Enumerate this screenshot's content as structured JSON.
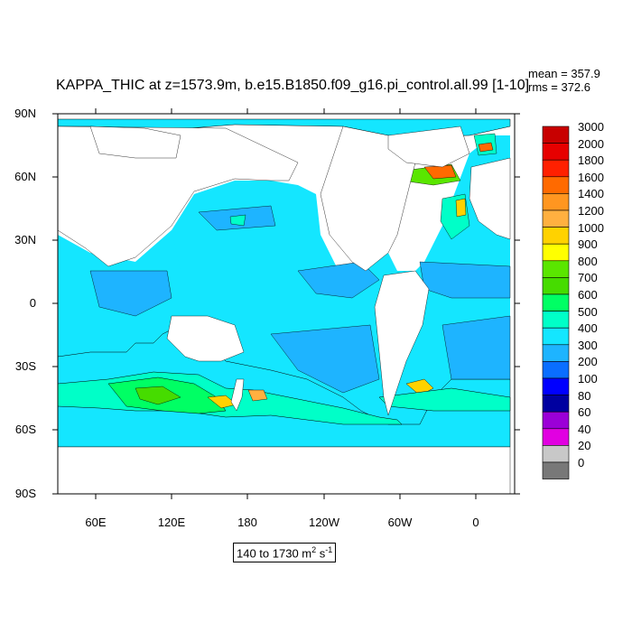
{
  "title": "KAPPA_THIC at z=1573.9m, b.e15.B1850.f09_g16.pi_control.all.99 [1-10]",
  "stats": {
    "mean": "mean = 357.9",
    "rms": "rms = 372.6"
  },
  "range": {
    "text": "140 to 1730 m",
    "unit_sup1": "2",
    "unit_mid": " s",
    "unit_sup2": "-1"
  },
  "lat_labels": [
    "90N",
    "60N",
    "30N",
    "0",
    "30S",
    "60S",
    "90S"
  ],
  "lon_labels": [
    "60E",
    "120E",
    "180",
    "120W",
    "60W",
    "0"
  ],
  "colorbar": {
    "levels": [
      "3000",
      "2000",
      "1800",
      "1600",
      "1400",
      "1200",
      "1000",
      "900",
      "800",
      "700",
      "600",
      "500",
      "400",
      "300",
      "200",
      "100",
      "80",
      "60",
      "40",
      "20",
      "0"
    ],
    "colors": [
      "#c80000",
      "#e60000",
      "#ff2000",
      "#ff6a00",
      "#ff9620",
      "#ffb040",
      "#ffd200",
      "#ffff00",
      "#5ae600",
      "#46dc00",
      "#00ff64",
      "#00ffc8",
      "#14e6ff",
      "#1eb4ff",
      "#0a6eff",
      "#0000ff",
      "#0000a0",
      "#9b00d7",
      "#e100e1",
      "#c8c8c8",
      "#787878"
    ]
  },
  "chart_data": {
    "type": "map",
    "variable": "KAPPA_THIC",
    "depth": "z=1573.9m",
    "run": "b.e15.B1850.f09_g16.pi_control.all.99",
    "mean": 357.9,
    "rms": 372.6,
    "range_min": 140,
    "range_max": 1730,
    "units": "m2 s-1",
    "lat_ticks": [
      90,
      60,
      30,
      0,
      -30,
      -60,
      -90
    ],
    "lon_ticks": [
      "60E",
      "120E",
      "180",
      "120W",
      "60W",
      "0"
    ],
    "contour_levels": [
      0,
      20,
      40,
      60,
      80,
      100,
      200,
      300,
      400,
      500,
      600,
      700,
      800,
      900,
      1000,
      1200,
      1400,
      1600,
      1800,
      2000,
      3000
    ]
  }
}
